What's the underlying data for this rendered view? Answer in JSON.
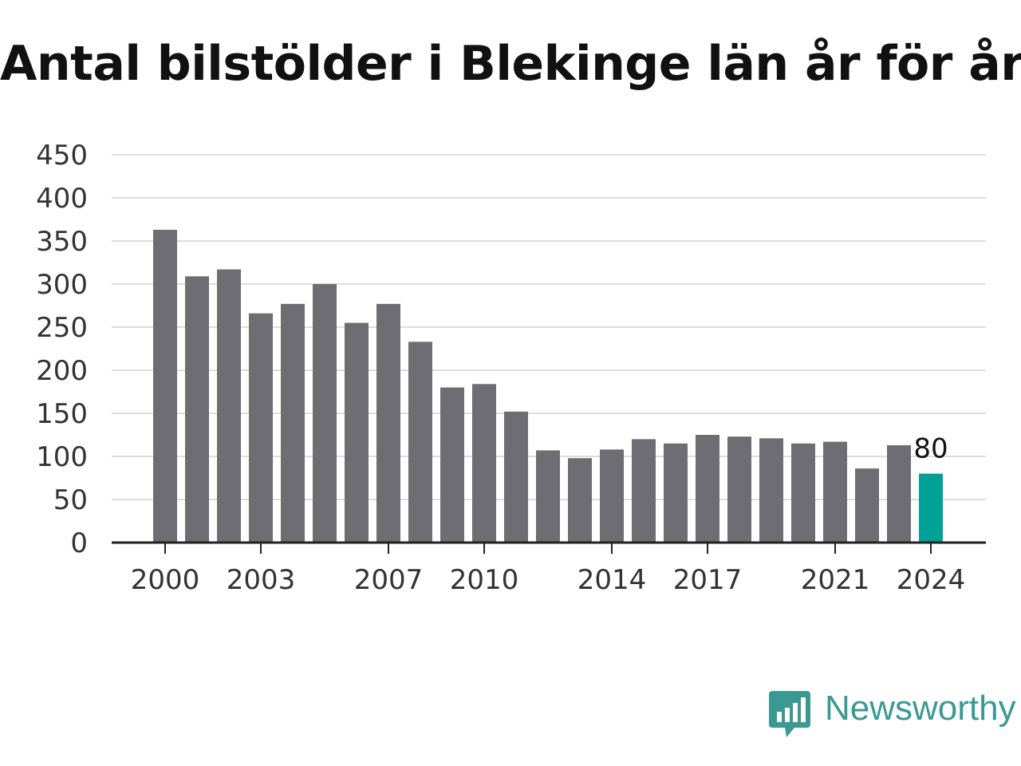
{
  "chart_data": {
    "type": "bar",
    "title": "Antal bilstölder i Blekinge län år för år",
    "xlabel": "",
    "ylabel": "",
    "categories": [
      "2000",
      "2001",
      "2002",
      "2003",
      "2004",
      "2005",
      "2006",
      "2007",
      "2008",
      "2009",
      "2010",
      "2011",
      "2012",
      "2013",
      "2014",
      "2015",
      "2016",
      "2017",
      "2018",
      "2019",
      "2020",
      "2021",
      "2022",
      "2023",
      "2024"
    ],
    "values": [
      363,
      309,
      317,
      266,
      277,
      300,
      255,
      277,
      233,
      180,
      184,
      152,
      107,
      98,
      108,
      120,
      115,
      125,
      123,
      121,
      115,
      117,
      86,
      113,
      80
    ],
    "ylim": [
      0,
      450
    ],
    "yticks": [
      0,
      50,
      100,
      150,
      200,
      250,
      300,
      350,
      400,
      450
    ],
    "xtick_labels": [
      "2000",
      "2003",
      "2007",
      "2010",
      "2014",
      "2017",
      "2021",
      "2024"
    ],
    "highlight": {
      "category": "2024",
      "label": "80"
    },
    "grid": true,
    "legend": "none",
    "colors": {
      "bar": "#6e6d73",
      "highlight": "#00a197",
      "grid": "#dddddd",
      "axis": "#222222"
    }
  },
  "brand": {
    "name": "Newsworthy",
    "icon": "newsworthy-bar-chart-icon",
    "color": "#3a9a92"
  }
}
